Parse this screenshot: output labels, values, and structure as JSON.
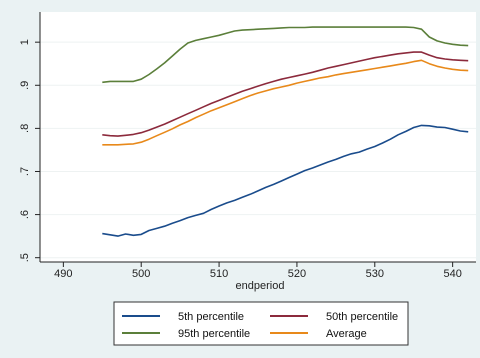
{
  "chart_data": {
    "type": "line",
    "xlabel": "endperiod",
    "x_ticks": [
      490,
      500,
      510,
      520,
      530,
      540
    ],
    "y_ticks": [
      ".5",
      ".6",
      ".7",
      ".8",
      ".9",
      "1"
    ],
    "xlim": [
      487,
      543
    ],
    "ylim": [
      0.49,
      1.07
    ],
    "grid": "horizontal",
    "legend_position": "bottom",
    "series": [
      {
        "name": "5th percentile",
        "color": "#1a4c8c",
        "x": [
          495,
          496,
          497,
          498,
          499,
          500,
          501,
          502,
          503,
          504,
          505,
          506,
          507,
          508,
          509,
          510,
          511,
          512,
          513,
          514,
          515,
          516,
          517,
          518,
          519,
          520,
          521,
          522,
          523,
          524,
          525,
          526,
          527,
          528,
          529,
          530,
          531,
          532,
          533,
          534,
          535,
          536,
          537,
          538,
          539,
          540,
          541,
          542
        ],
        "y": [
          0.556,
          0.553,
          0.55,
          0.555,
          0.552,
          0.554,
          0.563,
          0.568,
          0.573,
          0.58,
          0.586,
          0.593,
          0.598,
          0.603,
          0.612,
          0.62,
          0.627,
          0.633,
          0.64,
          0.647,
          0.655,
          0.663,
          0.67,
          0.678,
          0.686,
          0.694,
          0.702,
          0.708,
          0.715,
          0.722,
          0.728,
          0.735,
          0.741,
          0.745,
          0.752,
          0.758,
          0.766,
          0.775,
          0.785,
          0.793,
          0.802,
          0.807,
          0.806,
          0.803,
          0.802,
          0.798,
          0.794,
          0.792
        ]
      },
      {
        "name": "50th percentile",
        "color": "#8c2a3c",
        "x": [
          495,
          496,
          497,
          498,
          499,
          500,
          501,
          502,
          503,
          504,
          505,
          506,
          507,
          508,
          509,
          510,
          511,
          512,
          513,
          514,
          515,
          516,
          517,
          518,
          519,
          520,
          521,
          522,
          523,
          524,
          525,
          526,
          527,
          528,
          529,
          530,
          531,
          532,
          533,
          534,
          535,
          536,
          537,
          538,
          539,
          540,
          541,
          542
        ],
        "y": [
          0.785,
          0.783,
          0.782,
          0.784,
          0.786,
          0.79,
          0.796,
          0.803,
          0.81,
          0.818,
          0.826,
          0.834,
          0.842,
          0.85,
          0.858,
          0.865,
          0.872,
          0.879,
          0.886,
          0.892,
          0.898,
          0.904,
          0.909,
          0.914,
          0.918,
          0.922,
          0.926,
          0.93,
          0.935,
          0.94,
          0.944,
          0.948,
          0.952,
          0.956,
          0.96,
          0.964,
          0.967,
          0.97,
          0.973,
          0.975,
          0.977,
          0.977,
          0.97,
          0.964,
          0.961,
          0.959,
          0.958,
          0.957
        ]
      },
      {
        "name": "95th percentile",
        "color": "#5b7f3a",
        "x": [
          495,
          496,
          497,
          498,
          499,
          500,
          501,
          502,
          503,
          504,
          505,
          506,
          507,
          508,
          509,
          510,
          511,
          512,
          513,
          514,
          515,
          516,
          517,
          518,
          519,
          520,
          521,
          522,
          523,
          524,
          525,
          526,
          527,
          528,
          529,
          530,
          531,
          532,
          533,
          534,
          535,
          536,
          537,
          538,
          539,
          540,
          541,
          542
        ],
        "y": [
          0.907,
          0.909,
          0.909,
          0.909,
          0.909,
          0.914,
          0.925,
          0.938,
          0.952,
          0.968,
          0.984,
          0.998,
          1.004,
          1.008,
          1.012,
          1.016,
          1.021,
          1.026,
          1.028,
          1.029,
          1.03,
          1.031,
          1.032,
          1.033,
          1.034,
          1.034,
          1.034,
          1.035,
          1.035,
          1.035,
          1.035,
          1.035,
          1.035,
          1.035,
          1.035,
          1.035,
          1.035,
          1.035,
          1.035,
          1.035,
          1.034,
          1.03,
          1.012,
          1.003,
          0.998,
          0.995,
          0.993,
          0.992
        ]
      },
      {
        "name": "Average",
        "color": "#e8891a",
        "x": [
          495,
          496,
          497,
          498,
          499,
          500,
          501,
          502,
          503,
          504,
          505,
          506,
          507,
          508,
          509,
          510,
          511,
          512,
          513,
          514,
          515,
          516,
          517,
          518,
          519,
          520,
          521,
          522,
          523,
          524,
          525,
          526,
          527,
          528,
          529,
          530,
          531,
          532,
          533,
          534,
          535,
          536,
          537,
          538,
          539,
          540,
          541,
          542
        ],
        "y": [
          0.762,
          0.762,
          0.762,
          0.763,
          0.764,
          0.768,
          0.775,
          0.783,
          0.791,
          0.799,
          0.808,
          0.816,
          0.825,
          0.833,
          0.841,
          0.848,
          0.855,
          0.862,
          0.869,
          0.876,
          0.882,
          0.887,
          0.892,
          0.896,
          0.9,
          0.905,
          0.909,
          0.913,
          0.917,
          0.92,
          0.924,
          0.927,
          0.93,
          0.933,
          0.936,
          0.939,
          0.942,
          0.945,
          0.948,
          0.951,
          0.955,
          0.958,
          0.95,
          0.944,
          0.94,
          0.937,
          0.935,
          0.934
        ]
      }
    ]
  }
}
